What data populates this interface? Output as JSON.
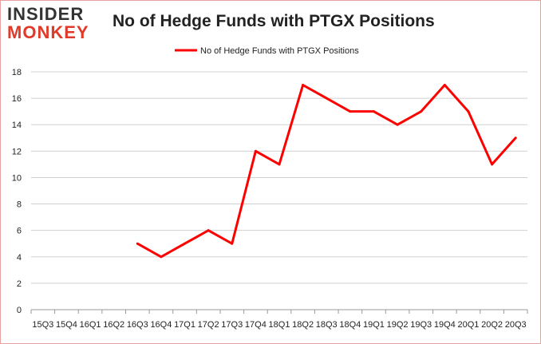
{
  "logo": {
    "line1": "INSIDER",
    "line2": "MONKEY"
  },
  "chart_data": {
    "type": "line",
    "title": "No of Hedge Funds with PTGX Positions",
    "categories": [
      "15Q3",
      "15Q4",
      "16Q1",
      "16Q2",
      "16Q3",
      "16Q4",
      "17Q1",
      "17Q2",
      "17Q3",
      "17Q4",
      "18Q1",
      "18Q2",
      "18Q3",
      "18Q4",
      "19Q1",
      "19Q2",
      "19Q3",
      "19Q4",
      "20Q1",
      "20Q2",
      "20Q3"
    ],
    "series": [
      {
        "name": "No of Hedge Funds with PTGX Positions",
        "color": "#ff0000",
        "values": [
          null,
          null,
          null,
          null,
          5,
          4,
          5,
          6,
          5,
          12,
          11,
          17,
          16,
          15,
          15,
          14,
          15,
          17,
          15,
          11,
          13
        ]
      }
    ],
    "ylim": [
      0,
      18
    ],
    "yticks": [
      0,
      2,
      4,
      6,
      8,
      10,
      12,
      14,
      16,
      18
    ],
    "grid": true,
    "legend": "top-center"
  }
}
